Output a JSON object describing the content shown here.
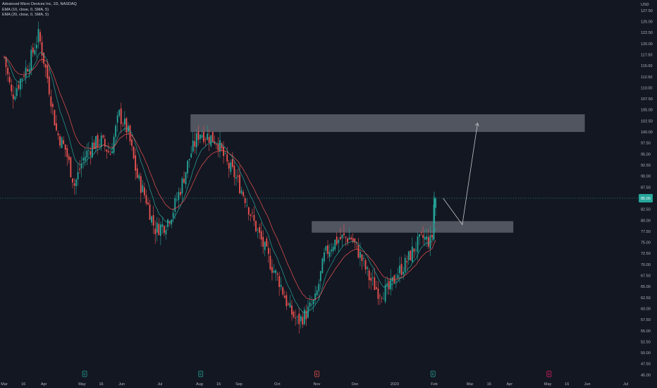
{
  "legend": {
    "symbol": "Advanced Micro Devices Inc, 1D, NASDAQ",
    "ema1": "EMA (10, close, 0, SMA, 5)",
    "ema2": "EMA (20, close, 0, SMA, 5)"
  },
  "currency": "USD",
  "colors": {
    "background": "#131722",
    "up": "#26a69a",
    "down": "#ef5350",
    "ema_fast": "#26a69a",
    "ema_slow": "#ef5350",
    "zone": "#5d606b",
    "arrow": "#c8c8c8",
    "price_line": "#26a69a"
  },
  "chart_data": {
    "type": "candlestick",
    "title": "Advanced Micro Devices Inc, 1D, NASDAQ",
    "ylim": [
      45,
      130
    ],
    "y_ticks": [
      "45.00",
      "47.50",
      "50.00",
      "52.50",
      "55.00",
      "57.50",
      "60.00",
      "62.50",
      "65.00",
      "67.50",
      "70.00",
      "72.50",
      "75.00",
      "77.50",
      "80.00",
      "82.50",
      "85.00",
      "87.50",
      "90.00",
      "92.50",
      "95.00",
      "97.50",
      "100.00",
      "102.50",
      "105.00",
      "107.50",
      "110.00",
      "112.50",
      "115.00",
      "117.50",
      "120.00",
      "122.50",
      "125.00",
      "127.50"
    ],
    "x_ticks": [
      {
        "label": "Mar",
        "date": "2022-03-01"
      },
      {
        "label": "16",
        "date": "2022-03-16"
      },
      {
        "label": "Apr",
        "date": "2022-04-01"
      },
      {
        "label": "May",
        "date": "2022-05-01"
      },
      {
        "label": "16",
        "date": "2022-05-16"
      },
      {
        "label": "Jun",
        "date": "2022-06-01"
      },
      {
        "label": "Jul",
        "date": "2022-07-01"
      },
      {
        "label": "Aug",
        "date": "2022-08-01"
      },
      {
        "label": "16",
        "date": "2022-08-16"
      },
      {
        "label": "Sep",
        "date": "2022-09-01"
      },
      {
        "label": "Oct",
        "date": "2022-10-01"
      },
      {
        "label": "Nov",
        "date": "2022-11-01"
      },
      {
        "label": "Dec",
        "date": "2022-12-01"
      },
      {
        "label": "2023",
        "date": "2023-01-01"
      },
      {
        "label": "Feb",
        "date": "2023-02-01"
      },
      {
        "label": "Mar",
        "date": "2023-03-01"
      },
      {
        "label": "16",
        "date": "2023-03-16"
      },
      {
        "label": "Apr",
        "date": "2023-04-01"
      },
      {
        "label": "May",
        "date": "2023-05-01"
      },
      {
        "label": "16",
        "date": "2023-05-16"
      },
      {
        "label": "Jun",
        "date": "2023-06-01"
      },
      {
        "label": "Jul",
        "date": "2023-07-01"
      }
    ],
    "series_close": [
      {
        "date": "2022-03-01",
        "close": 117
      },
      {
        "date": "2022-03-07",
        "close": 108
      },
      {
        "date": "2022-03-14",
        "close": 112
      },
      {
        "date": "2022-03-21",
        "close": 116
      },
      {
        "date": "2022-03-28",
        "close": 122
      },
      {
        "date": "2022-04-04",
        "close": 112
      },
      {
        "date": "2022-04-11",
        "close": 100
      },
      {
        "date": "2022-04-18",
        "close": 96
      },
      {
        "date": "2022-04-25",
        "close": 88
      },
      {
        "date": "2022-05-02",
        "close": 94
      },
      {
        "date": "2022-05-09",
        "close": 97
      },
      {
        "date": "2022-05-16",
        "close": 98
      },
      {
        "date": "2022-05-23",
        "close": 95
      },
      {
        "date": "2022-05-30",
        "close": 104
      },
      {
        "date": "2022-06-06",
        "close": 100
      },
      {
        "date": "2022-06-13",
        "close": 90
      },
      {
        "date": "2022-06-20",
        "close": 85
      },
      {
        "date": "2022-06-27",
        "close": 78
      },
      {
        "date": "2022-07-05",
        "close": 79
      },
      {
        "date": "2022-07-11",
        "close": 82
      },
      {
        "date": "2022-07-18",
        "close": 88
      },
      {
        "date": "2022-07-25",
        "close": 95
      },
      {
        "date": "2022-08-01",
        "close": 100
      },
      {
        "date": "2022-08-08",
        "close": 99
      },
      {
        "date": "2022-08-15",
        "close": 98
      },
      {
        "date": "2022-08-22",
        "close": 93
      },
      {
        "date": "2022-08-29",
        "close": 90
      },
      {
        "date": "2022-09-06",
        "close": 85
      },
      {
        "date": "2022-09-12",
        "close": 80
      },
      {
        "date": "2022-09-19",
        "close": 75
      },
      {
        "date": "2022-09-26",
        "close": 70
      },
      {
        "date": "2022-10-03",
        "close": 66
      },
      {
        "date": "2022-10-10",
        "close": 60
      },
      {
        "date": "2022-10-17",
        "close": 57
      },
      {
        "date": "2022-10-24",
        "close": 59
      },
      {
        "date": "2022-10-31",
        "close": 62
      },
      {
        "date": "2022-11-07",
        "close": 72
      },
      {
        "date": "2022-11-14",
        "close": 75
      },
      {
        "date": "2022-11-21",
        "close": 76
      },
      {
        "date": "2022-11-28",
        "close": 76
      },
      {
        "date": "2022-12-05",
        "close": 72
      },
      {
        "date": "2022-12-12",
        "close": 67
      },
      {
        "date": "2022-12-19",
        "close": 64
      },
      {
        "date": "2022-12-27",
        "close": 64
      },
      {
        "date": "2023-01-03",
        "close": 68
      },
      {
        "date": "2023-01-09",
        "close": 70
      },
      {
        "date": "2023-01-17",
        "close": 74
      },
      {
        "date": "2023-01-23",
        "close": 76
      },
      {
        "date": "2023-01-30",
        "close": 75
      },
      {
        "date": "2023-02-01",
        "close": 85
      }
    ],
    "current_price": 85.0,
    "zones": [
      {
        "name": "resistance",
        "price_low": 100.0,
        "price_high": 104.0,
        "date_from": "2022-07-25",
        "date_to": "2023-05-30"
      },
      {
        "name": "support",
        "price_low": 77.2,
        "price_high": 79.8,
        "date_from": "2022-10-28",
        "date_to": "2023-04-04"
      }
    ],
    "projection": [
      {
        "date": "2023-02-08",
        "price": 85.0
      },
      {
        "date": "2023-02-23",
        "price": 79.0
      },
      {
        "date": "2023-03-07",
        "price": 102.0
      }
    ],
    "event_markers": [
      {
        "date": "2022-05-03",
        "label": "E",
        "color": "#26a69a"
      },
      {
        "date": "2022-08-02",
        "label": "E",
        "color": "#26a69a"
      },
      {
        "date": "2022-11-01",
        "label": "E",
        "color": "#ef5350"
      },
      {
        "date": "2023-01-31",
        "label": "E",
        "color": "#26a69a"
      },
      {
        "date": "2023-05-02",
        "label": "E",
        "color": "#e91e63"
      }
    ],
    "grid": false,
    "legend_position": "top-left"
  }
}
